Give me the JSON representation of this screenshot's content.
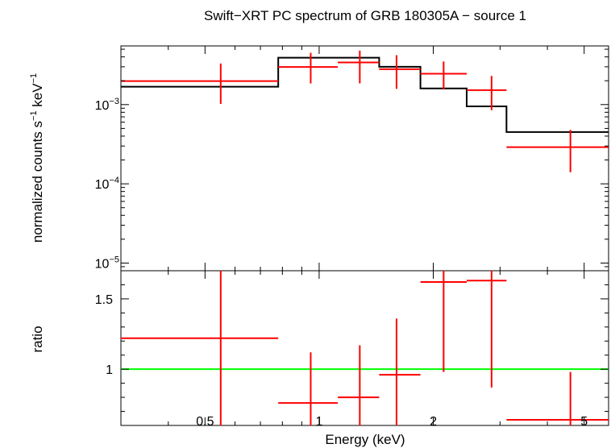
{
  "chart_data": {
    "type": "scatter",
    "title": "Swift−XRT PC spectrum of GRB 180305A − source 1",
    "xlabel": "Energy (keV)",
    "x_scale": "log",
    "xlim": [
      0.3,
      5.8
    ],
    "x_ticks": [
      {
        "v": 0.5,
        "label": "0.5"
      },
      {
        "v": 1,
        "label": "1"
      },
      {
        "v": 2,
        "label": "2"
      },
      {
        "v": 5,
        "label": "5"
      }
    ],
    "panels": [
      {
        "id": "spectrum",
        "ylabel_parts": [
          "normalized counts s",
          "−1",
          " keV",
          "−1"
        ],
        "y_scale": "log",
        "ylim": [
          8e-06,
          0.0055
        ],
        "y_ticks": [
          {
            "v": 0.001,
            "base": "10",
            "exp": "−3"
          },
          {
            "v": 0.0001,
            "base": "10",
            "exp": "−4"
          },
          {
            "v": 1e-05,
            "base": "10",
            "exp": "−5"
          }
        ],
        "data": [
          {
            "x": 0.55,
            "xlo": 0.3,
            "xhi": 0.78,
            "y": 0.00198,
            "ylo": 0.00102,
            "yhi": 0.0033
          },
          {
            "x": 0.95,
            "xlo": 0.78,
            "xhi": 1.12,
            "y": 0.00298,
            "ylo": 0.00185,
            "yhi": 0.0045
          },
          {
            "x": 1.28,
            "xlo": 1.12,
            "xhi": 1.44,
            "y": 0.0034,
            "ylo": 0.00185,
            "yhi": 0.0048
          },
          {
            "x": 1.6,
            "xlo": 1.44,
            "xhi": 1.85,
            "y": 0.0028,
            "ylo": 0.00158,
            "yhi": 0.0042
          },
          {
            "x": 2.13,
            "xlo": 1.85,
            "xhi": 2.45,
            "y": 0.00245,
            "ylo": 0.00155,
            "yhi": 0.0035
          },
          {
            "x": 2.85,
            "xlo": 2.45,
            "xhi": 3.12,
            "y": 0.00152,
            "ylo": 0.00085,
            "yhi": 0.0023
          },
          {
            "x": 4.6,
            "xlo": 3.12,
            "xhi": 5.8,
            "y": 0.00029,
            "ylo": 0.00014,
            "yhi": 0.00048
          }
        ],
        "model": [
          {
            "xlo": 0.3,
            "xhi": 0.78,
            "y": 0.00168
          },
          {
            "xlo": 0.78,
            "xhi": 1.44,
            "y": 0.0039
          },
          {
            "xlo": 1.44,
            "xhi": 1.85,
            "y": 0.003
          },
          {
            "xlo": 1.85,
            "xhi": 2.45,
            "y": 0.0016
          },
          {
            "xlo": 2.45,
            "xhi": 3.12,
            "y": 0.00095
          },
          {
            "xlo": 3.12,
            "xhi": 5.8,
            "y": 0.00045
          }
        ]
      },
      {
        "id": "ratio",
        "ylabel": "ratio",
        "y_scale": "linear",
        "ylim": [
          0.6,
          1.7
        ],
        "y_ticks": [
          {
            "v": 1,
            "label": "1"
          },
          {
            "v": 1.5,
            "label": "1.5"
          }
        ],
        "reference_line": 1,
        "data": [
          {
            "x": 0.55,
            "xlo": 0.3,
            "xhi": 0.78,
            "y": 1.22,
            "ylo": 0.6,
            "yhi": 1.7
          },
          {
            "x": 0.95,
            "xlo": 0.78,
            "xhi": 1.12,
            "y": 0.76,
            "ylo": 0.6,
            "yhi": 1.12
          },
          {
            "x": 1.28,
            "xlo": 1.12,
            "xhi": 1.44,
            "y": 0.8,
            "ylo": 0.6,
            "yhi": 1.17
          },
          {
            "x": 1.6,
            "xlo": 1.44,
            "xhi": 1.85,
            "y": 0.96,
            "ylo": 0.6,
            "yhi": 1.36
          },
          {
            "x": 2.13,
            "xlo": 1.85,
            "xhi": 2.45,
            "y": 1.62,
            "ylo": 0.98,
            "yhi": 1.7
          },
          {
            "x": 2.85,
            "xlo": 2.45,
            "xhi": 3.12,
            "y": 1.63,
            "ylo": 0.87,
            "yhi": 1.7
          },
          {
            "x": 4.6,
            "xlo": 3.12,
            "xhi": 5.8,
            "y": 0.64,
            "ylo": 0.6,
            "yhi": 0.98
          }
        ]
      }
    ],
    "colors": {
      "data": "#ff0000",
      "model": "#000000",
      "reference": "#00ff00",
      "axes": "#000000"
    }
  }
}
